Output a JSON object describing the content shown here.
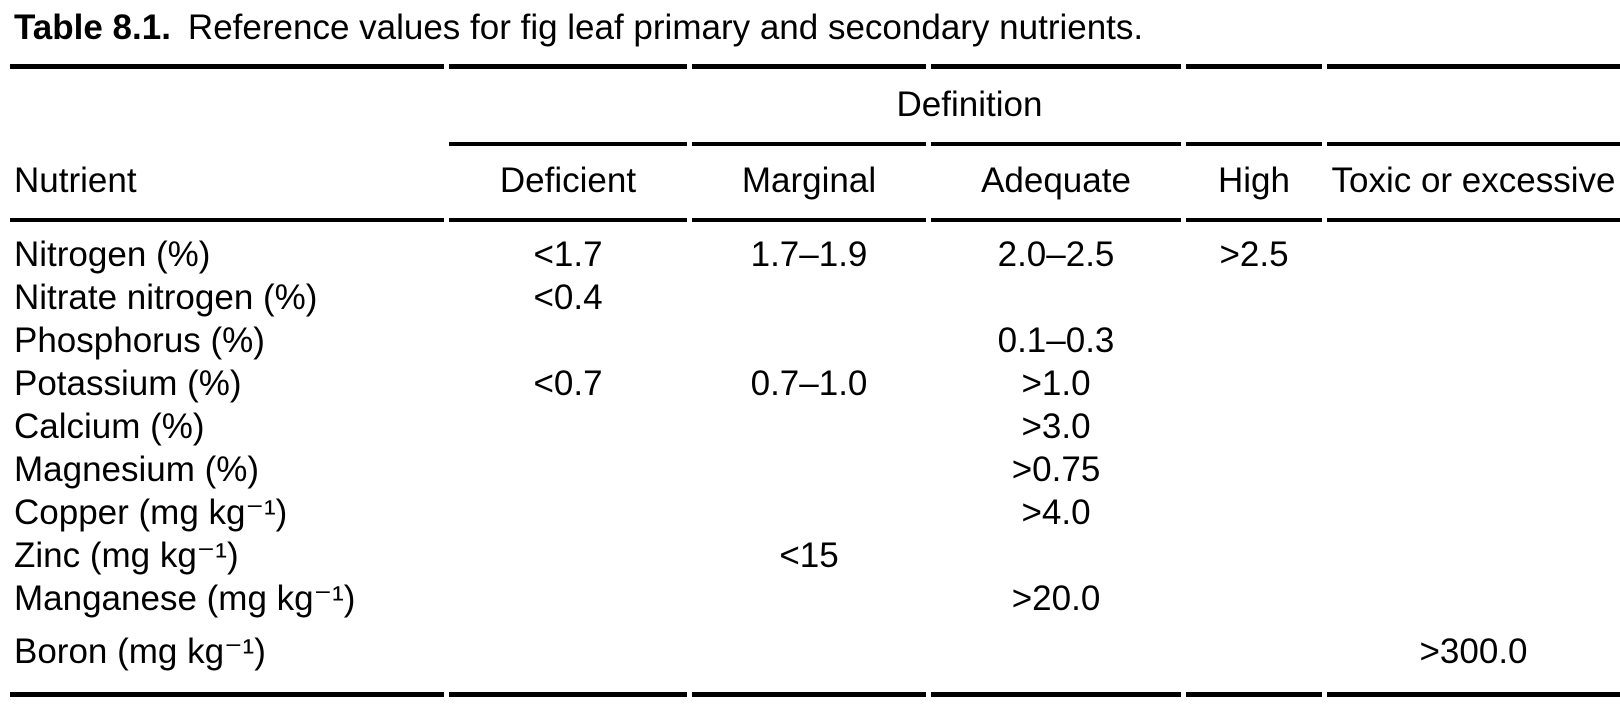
{
  "page": {
    "background_color": "#ffffff",
    "text_color": "#000000",
    "rule_color": "#000000"
  },
  "caption": {
    "number": "Table 8.1.",
    "text": "Reference values for fig leaf primary and secondary nutrients."
  },
  "table": {
    "group_header": "Definition",
    "columns": [
      "Nutrient",
      "Deficient",
      "Marginal",
      "Adequate",
      "High",
      "Toxic or excessive"
    ],
    "rows": [
      [
        "Nitrogen (%)",
        "<1.7",
        "1.7–1.9",
        "2.0–2.5",
        ">2.5",
        ""
      ],
      [
        "Nitrate nitrogen (%)",
        "<0.4",
        "",
        "",
        "",
        ""
      ],
      [
        "Phosphorus (%)",
        "",
        "",
        "0.1–0.3",
        "",
        ""
      ],
      [
        "Potassium (%)",
        "<0.7",
        "0.7–1.0",
        ">1.0",
        "",
        ""
      ],
      [
        "Calcium (%)",
        "",
        "",
        ">3.0",
        "",
        ""
      ],
      [
        "Magnesium (%)",
        "",
        "",
        ">0.75",
        "",
        ""
      ],
      [
        "Copper (mg kg⁻¹)",
        "",
        "",
        ">4.0",
        "",
        ""
      ],
      [
        "Zinc (mg kg⁻¹)",
        "",
        "<15",
        "",
        "",
        ""
      ],
      [
        "Manganese (mg kg⁻¹)",
        "",
        "",
        ">20.0",
        "",
        ""
      ],
      [
        "Boron (mg kg⁻¹)",
        "",
        "",
        "",
        "",
        ">300.0"
      ]
    ]
  }
}
